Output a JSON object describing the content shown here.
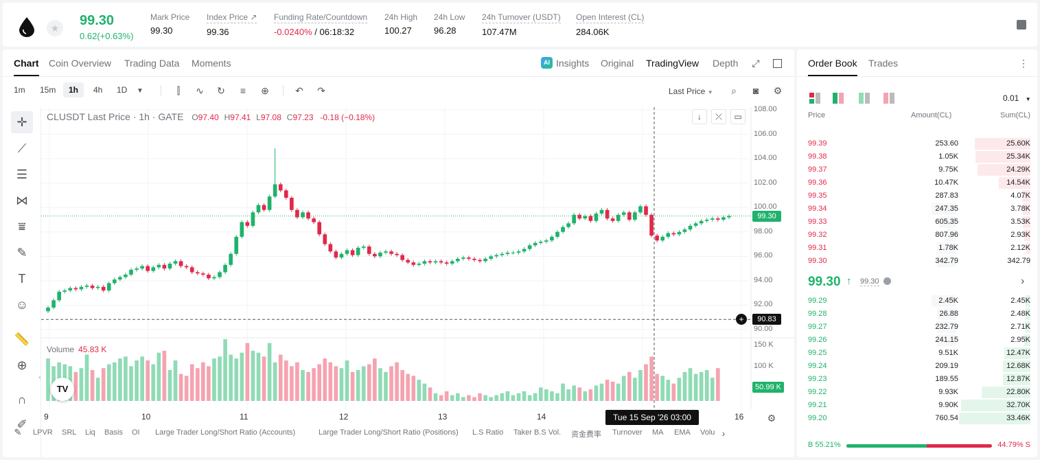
{
  "header": {
    "price": "99.30",
    "change": "0.62(+0.63%)",
    "stats": [
      {
        "label": "Mark Price",
        "value": "99.30",
        "dotted": false
      },
      {
        "label": "Index Price ↗",
        "value": "99.36",
        "dotted": true
      },
      {
        "label": "Funding Rate/Countdown",
        "value_neg": "-0.0240%",
        "value": " / 06:18:32",
        "dotted": true
      },
      {
        "label": "24h High",
        "value": "100.27",
        "dotted": false
      },
      {
        "label": "24h Low",
        "value": "96.28",
        "dotted": false
      },
      {
        "label": "24h Turnover (USDT)",
        "value": "107.47M",
        "dotted": true
      },
      {
        "label": "Open Interest (CL)",
        "value": "284.06K",
        "dotted": true
      }
    ]
  },
  "tabs": {
    "left": [
      "Chart",
      "Coin Overview",
      "Trading Data",
      "Moments"
    ],
    "ai_badge": "AI",
    "right": [
      "Insights",
      "Original",
      "TradingView",
      "Depth"
    ]
  },
  "timeframes": [
    "1m",
    "15m",
    "1h",
    "4h",
    "1D"
  ],
  "last_price_select": "Last Price",
  "legend": {
    "symbol": "CLUSDT Last Price · 1h · GATE",
    "o": "97.40",
    "h": "97.41",
    "l": "97.08",
    "c": "97.23",
    "chg": "-0.18 (−0.18%)"
  },
  "volume_legend": {
    "label": "Volume",
    "value": "45.83 K"
  },
  "price_axis": [
    "108.00",
    "106.00",
    "104.00",
    "102.00",
    "100.00",
    "98.00",
    "96.00",
    "94.00",
    "92.00",
    "90.00"
  ],
  "volume_axis": [
    "150 K",
    "100 K"
  ],
  "price_tags": {
    "last": "99.30",
    "cross": "90.83",
    "volume": "50.99 K"
  },
  "x_axis": [
    "9",
    "10",
    "11",
    "12",
    "13",
    "14",
    "16"
  ],
  "crosshair_time": "Tue 15 Sep '26   03:00",
  "indicators": [
    "LPVR",
    "SRL",
    "Liq",
    "Basis",
    "OI",
    "Large Trader Long/Short Ratio (Accounts)",
    "Large Trader Long/Short Ratio (Positions)",
    "L.S Ratio",
    "Taker B.S Vol.",
    "资金费率",
    "Turnover",
    "MA",
    "EMA",
    "Volu"
  ],
  "colors": {
    "up": "#20b26c",
    "down": "#e0294a",
    "up_bg": "#e4f6ec",
    "down_bg": "#fde9ec"
  },
  "chart_data": {
    "type": "candlestick",
    "symbol": "CLUSDT",
    "interval": "1h",
    "ylim": [
      90,
      108
    ],
    "last_price": 99.3,
    "crosshair_price": 90.83,
    "x_ticks": [
      "9",
      "10",
      "11",
      "12",
      "13",
      "14",
      "16"
    ],
    "close_series": [
      91.8,
      92.4,
      93.1,
      93.2,
      93.4,
      93.3,
      93.5,
      93.6,
      93.4,
      93.5,
      93.2,
      93.8,
      94.1,
      94.3,
      94.5,
      94.9,
      95.0,
      95.2,
      94.8,
      95.1,
      95.3,
      95.0,
      95.4,
      95.6,
      95.2,
      95.1,
      94.7,
      94.6,
      94.5,
      94.2,
      94.3,
      94.7,
      95.3,
      96.2,
      97.6,
      98.8,
      98.5,
      99.6,
      100.2,
      99.8,
      100.9,
      101.9,
      101.4,
      100.8,
      99.8,
      99.2,
      99.6,
      99.1,
      98.8,
      97.8,
      97.0,
      96.4,
      95.9,
      96.2,
      96.5,
      96.1,
      96.7,
      96.8,
      96.2,
      96.0,
      96.3,
      96.4,
      96.2,
      96.1,
      95.7,
      95.5,
      95.3,
      95.4,
      95.6,
      95.5,
      95.6,
      95.5,
      95.4,
      95.6,
      95.8,
      95.9,
      95.8,
      95.7,
      95.6,
      95.8,
      96.0,
      96.1,
      96.2,
      96.3,
      96.3,
      96.4,
      96.6,
      96.9,
      97.1,
      97.2,
      97.3,
      97.6,
      98.0,
      98.4,
      98.7,
      99.4,
      99.1,
      99.3,
      98.9,
      99.5,
      99.8,
      99.1,
      98.9,
      99.4,
      99.6,
      99.0,
      99.6,
      100.1,
      99.4,
      97.7,
      97.3,
      97.6,
      97.9,
      97.8,
      98.0,
      98.2,
      98.5,
      98.7,
      98.9,
      99.0,
      99.1,
      99.0,
      99.2,
      99.3
    ],
    "volume_series": [
      110,
      90,
      100,
      95,
      90,
      75,
      85,
      120,
      80,
      60,
      85,
      95,
      100,
      110,
      115,
      90,
      105,
      115,
      105,
      95,
      125,
      130,
      80,
      105,
      70,
      65,
      95,
      85,
      100,
      90,
      110,
      115,
      160,
      120,
      110,
      125,
      150,
      130,
      125,
      115,
      150,
      100,
      120,
      105,
      90,
      100,
      80,
      75,
      85,
      95,
      110,
      100,
      90,
      85,
      105,
      75,
      80,
      90,
      95,
      110,
      85,
      75,
      90,
      100,
      80,
      70,
      65,
      55,
      45,
      35,
      20,
      15,
      25,
      15,
      20,
      10,
      15,
      10,
      20,
      15,
      10,
      15,
      20,
      25,
      15,
      20,
      25,
      15,
      20,
      35,
      30,
      25,
      20,
      45,
      30,
      40,
      35,
      25,
      30,
      40,
      45,
      55,
      50,
      45,
      65,
      75,
      60,
      80,
      95,
      115,
      70,
      65,
      55,
      45,
      60,
      75,
      85,
      70,
      75,
      80,
      60,
      85
    ]
  },
  "orderbook": {
    "tabs": [
      "Order Book",
      "Trades"
    ],
    "precision": "0.01",
    "headers": {
      "price": "Price",
      "amount": "Amount(CL)",
      "sum": "Sum(CL)"
    },
    "asks": [
      {
        "price": "99.39",
        "amount": "253.60",
        "sum": "25.60K",
        "depth": 0.78,
        "amt_depth": 0
      },
      {
        "price": "99.38",
        "amount": "1.05K",
        "sum": "25.34K",
        "depth": 0.77,
        "amt_depth": 0
      },
      {
        "price": "99.37",
        "amount": "9.75K",
        "sum": "24.29K",
        "depth": 0.74,
        "amt_depth": 0
      },
      {
        "price": "99.36",
        "amount": "10.47K",
        "sum": "14.54K",
        "depth": 0.44,
        "amt_depth": 0
      },
      {
        "price": "99.35",
        "amount": "287.83",
        "sum": "4.07K",
        "depth": 0.12,
        "amt_depth": 0
      },
      {
        "price": "99.34",
        "amount": "247.35",
        "sum": "3.78K",
        "depth": 0.11,
        "amt_depth": 0.32
      },
      {
        "price": "99.33",
        "amount": "605.35",
        "sum": "3.53K",
        "depth": 0.11,
        "amt_depth": 0.22
      },
      {
        "price": "99.32",
        "amount": "807.96",
        "sum": "2.93K",
        "depth": 0.09,
        "amt_depth": 0.15
      },
      {
        "price": "99.31",
        "amount": "1.78K",
        "sum": "2.12K",
        "depth": 0.06,
        "amt_depth": 0.25
      },
      {
        "price": "99.30",
        "amount": "342.79",
        "sum": "342.79",
        "depth": 0.01,
        "amt_depth": 0.25
      }
    ],
    "mid": {
      "price": "99.30",
      "arrow": "↑",
      "mark": "99.30"
    },
    "bids": [
      {
        "price": "99.29",
        "amount": "2.45K",
        "sum": "2.45K",
        "depth": 0.07,
        "amt_depth": 0.32
      },
      {
        "price": "99.28",
        "amount": "26.88",
        "sum": "2.48K",
        "depth": 0.07,
        "amt_depth": 0.25
      },
      {
        "price": "99.27",
        "amount": "232.79",
        "sum": "2.71K",
        "depth": 0.08,
        "amt_depth": 0.25
      },
      {
        "price": "99.26",
        "amount": "241.15",
        "sum": "2.95K",
        "depth": 0.09,
        "amt_depth": 0.25
      },
      {
        "price": "99.25",
        "amount": "9.51K",
        "sum": "12.47K",
        "depth": 0.37,
        "amt_depth": 0
      },
      {
        "price": "99.24",
        "amount": "209.19",
        "sum": "12.68K",
        "depth": 0.38,
        "amt_depth": 0
      },
      {
        "price": "99.23",
        "amount": "189.55",
        "sum": "12.87K",
        "depth": 0.38,
        "amt_depth": 0
      },
      {
        "price": "99.22",
        "amount": "9.93K",
        "sum": "22.80K",
        "depth": 0.68,
        "amt_depth": 0
      },
      {
        "price": "99.21",
        "amount": "9.90K",
        "sum": "32.70K",
        "depth": 0.97,
        "amt_depth": 0
      },
      {
        "price": "99.20",
        "amount": "760.54",
        "sum": "33.46K",
        "depth": 1.0,
        "amt_depth": 0
      }
    ],
    "ratio": {
      "buy": "B  55.21%",
      "sell": "44.79%  S",
      "buy_pct": 0.5521
    }
  }
}
